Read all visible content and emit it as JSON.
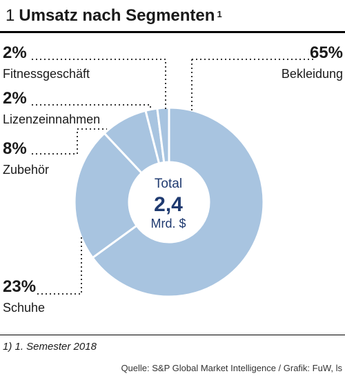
{
  "header": {
    "number": "1",
    "title": "Umsatz nach Segmenten",
    "footnote_mark": "1"
  },
  "chart_data": {
    "type": "pie",
    "variant": "donut",
    "center": {
      "line1": "Total",
      "line2": "2,4",
      "line3": "Mrd. $"
    },
    "slices": [
      {
        "name": "Bekleidung",
        "value": 65,
        "pct_label": "65%"
      },
      {
        "name": "Schuhe",
        "value": 23,
        "pct_label": "23%"
      },
      {
        "name": "Zubehör",
        "value": 8,
        "pct_label": "8%"
      },
      {
        "name": "Lizenzeinnahmen",
        "value": 2,
        "pct_label": "2%"
      },
      {
        "name": "Fitnessgeschäft",
        "value": 2,
        "pct_label": "2%"
      }
    ],
    "colors": {
      "slice": "#a8c4e0",
      "separator": "#ffffff",
      "center_text": "#1f3a70",
      "leader": "#333333"
    }
  },
  "footnote": "1) 1. Semester 2018",
  "source": "Quelle: S&P Global Market Intelligence / Grafik: FuW, ls"
}
